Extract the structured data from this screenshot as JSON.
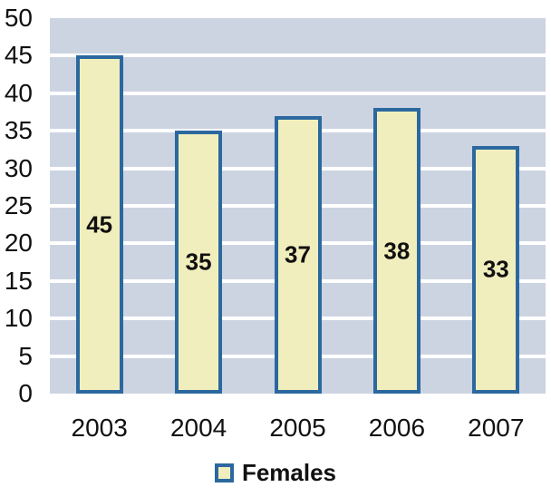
{
  "chart_data": {
    "type": "bar",
    "title": "",
    "xlabel": "",
    "ylabel": "",
    "categories": [
      "2003",
      "2004",
      "2005",
      "2006",
      "2007"
    ],
    "series": [
      {
        "name": "Females",
        "values": [
          45,
          35,
          37,
          38,
          33
        ]
      }
    ],
    "bar_labels": true,
    "ylim": [
      0,
      50
    ],
    "yticks": [
      0,
      5,
      10,
      15,
      20,
      25,
      30,
      35,
      40,
      45,
      50
    ],
    "grid": true,
    "legend_position": "bottom",
    "colors": {
      "plot_background": "#ccd4e2",
      "gridline": "#ffffff",
      "bar_fill": "#f1eebd",
      "bar_border": "#2b689f",
      "text": "#111111"
    }
  }
}
